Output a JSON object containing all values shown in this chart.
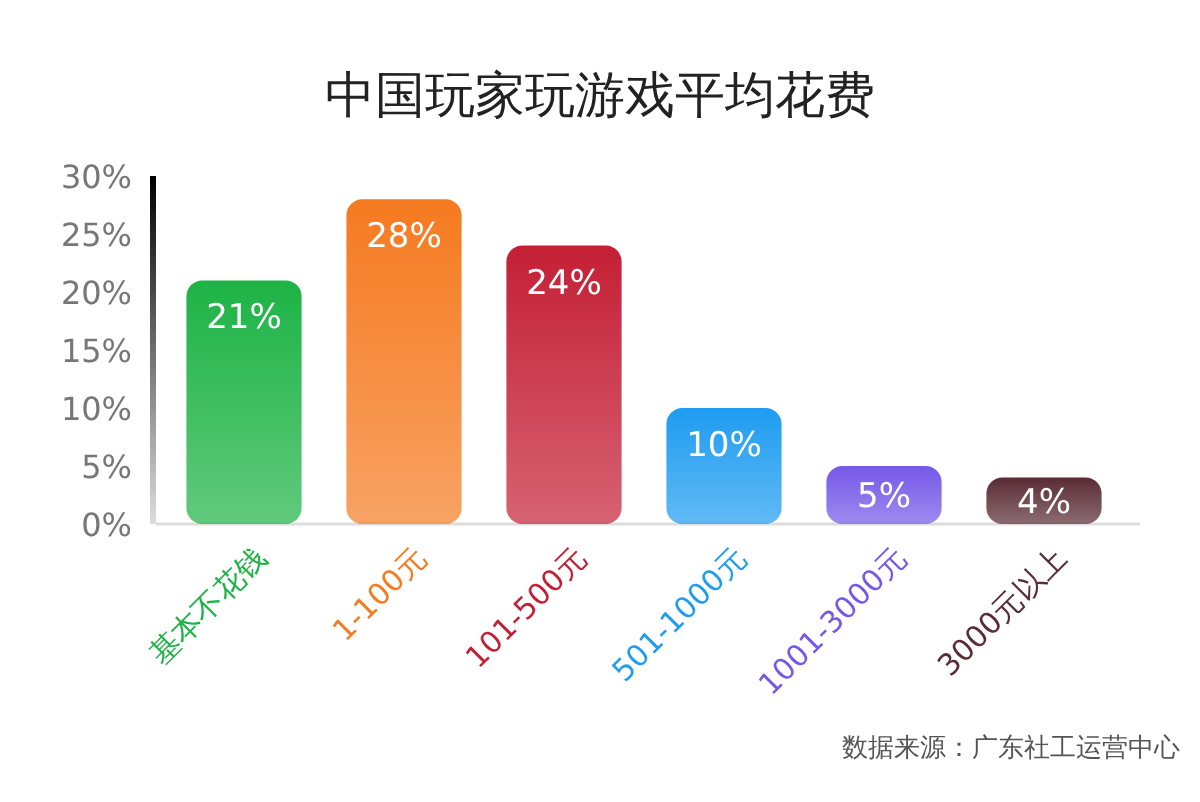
{
  "chart_data": {
    "type": "bar",
    "title": "中国玩家玩游戏平均花费",
    "categories": [
      "基本不花钱",
      "1-100元",
      "101-500元",
      "501-1000元",
      "1001-3000元",
      "3000元以上"
    ],
    "values": [
      21,
      28,
      24,
      10,
      5,
      4
    ],
    "value_labels": [
      "21%",
      "28%",
      "24%",
      "10%",
      "5%",
      "4%"
    ],
    "colors": [
      "#1db345",
      "#f57a20",
      "#c41f35",
      "#1e9cf0",
      "#7558e8",
      "#5a2c35"
    ],
    "ylim": [
      0,
      30
    ],
    "yticks": [
      {
        "value": 0,
        "label": "0%"
      },
      {
        "value": 5,
        "label": "5%"
      },
      {
        "value": 10,
        "label": "10%"
      },
      {
        "value": 15,
        "label": "15%"
      },
      {
        "value": 20,
        "label": "20%"
      },
      {
        "value": 25,
        "label": "25%"
      },
      {
        "value": 30,
        "label": "30%"
      }
    ],
    "annotations": [
      "数据来源：广东社工运营中心"
    ]
  }
}
